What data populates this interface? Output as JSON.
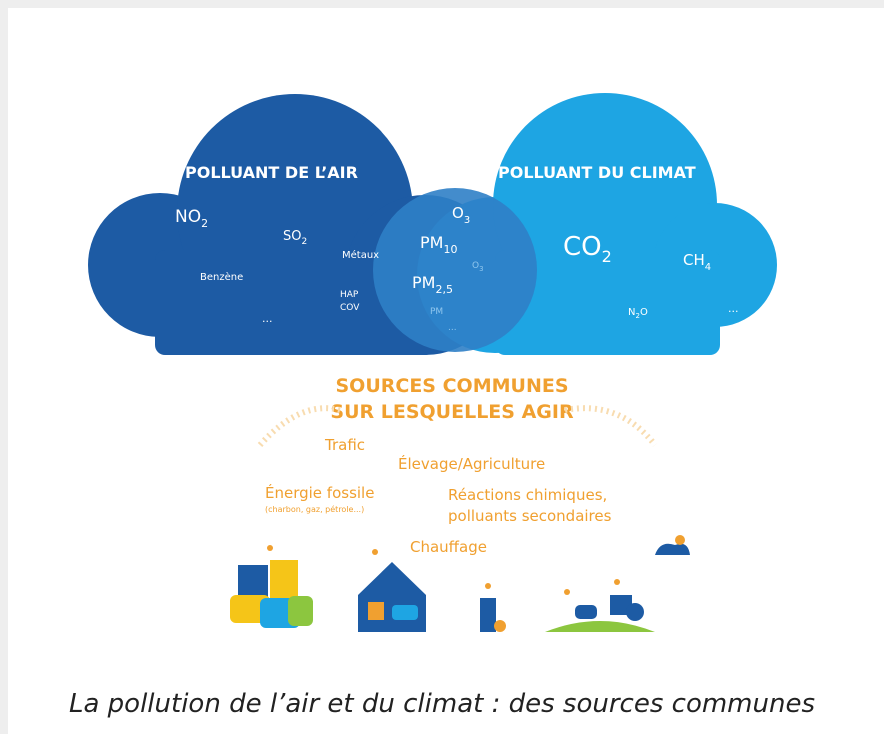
{
  "left_cloud": {
    "title": "POLLUANT DE L’AIR",
    "items": [
      {
        "text": "NO",
        "sub": "2"
      },
      {
        "text": "SO",
        "sub": "2"
      },
      {
        "text": "Métaux"
      },
      {
        "text": "Benzène"
      },
      {
        "text": "HAP"
      },
      {
        "text": "COV"
      },
      {
        "text": "..."
      }
    ]
  },
  "overlap": {
    "items": [
      {
        "text": "O",
        "sub": "3"
      },
      {
        "text": "PM",
        "sub": "10"
      },
      {
        "text": "O",
        "sub": "3"
      },
      {
        "text": "PM",
        "sub": "2,5"
      },
      {
        "text": "PM"
      },
      {
        "text": "..."
      }
    ]
  },
  "right_cloud": {
    "title": "POLLUANT DU CLIMAT",
    "items": [
      {
        "text": "CO",
        "sub": "2"
      },
      {
        "text": "CH",
        "sub": "4"
      },
      {
        "text": "N",
        "sub": "2",
        "after": "O"
      },
      {
        "text": "..."
      }
    ]
  },
  "sources": {
    "title_lines": [
      "SOURCES COMMUNES",
      "SUR LESQUELLES AGIR"
    ],
    "items": [
      {
        "text": "Trafic"
      },
      {
        "text": "Élevage/Agriculture"
      },
      {
        "text": "Énergie fossile",
        "note": "(charbon, gaz, pétrole...)"
      },
      {
        "lines": [
          "Réactions chimiques,",
          "polluants secondaires"
        ]
      },
      {
        "text": "Chauffage"
      }
    ]
  },
  "caption": "La pollution de l’air et du climat : des sources communes"
}
